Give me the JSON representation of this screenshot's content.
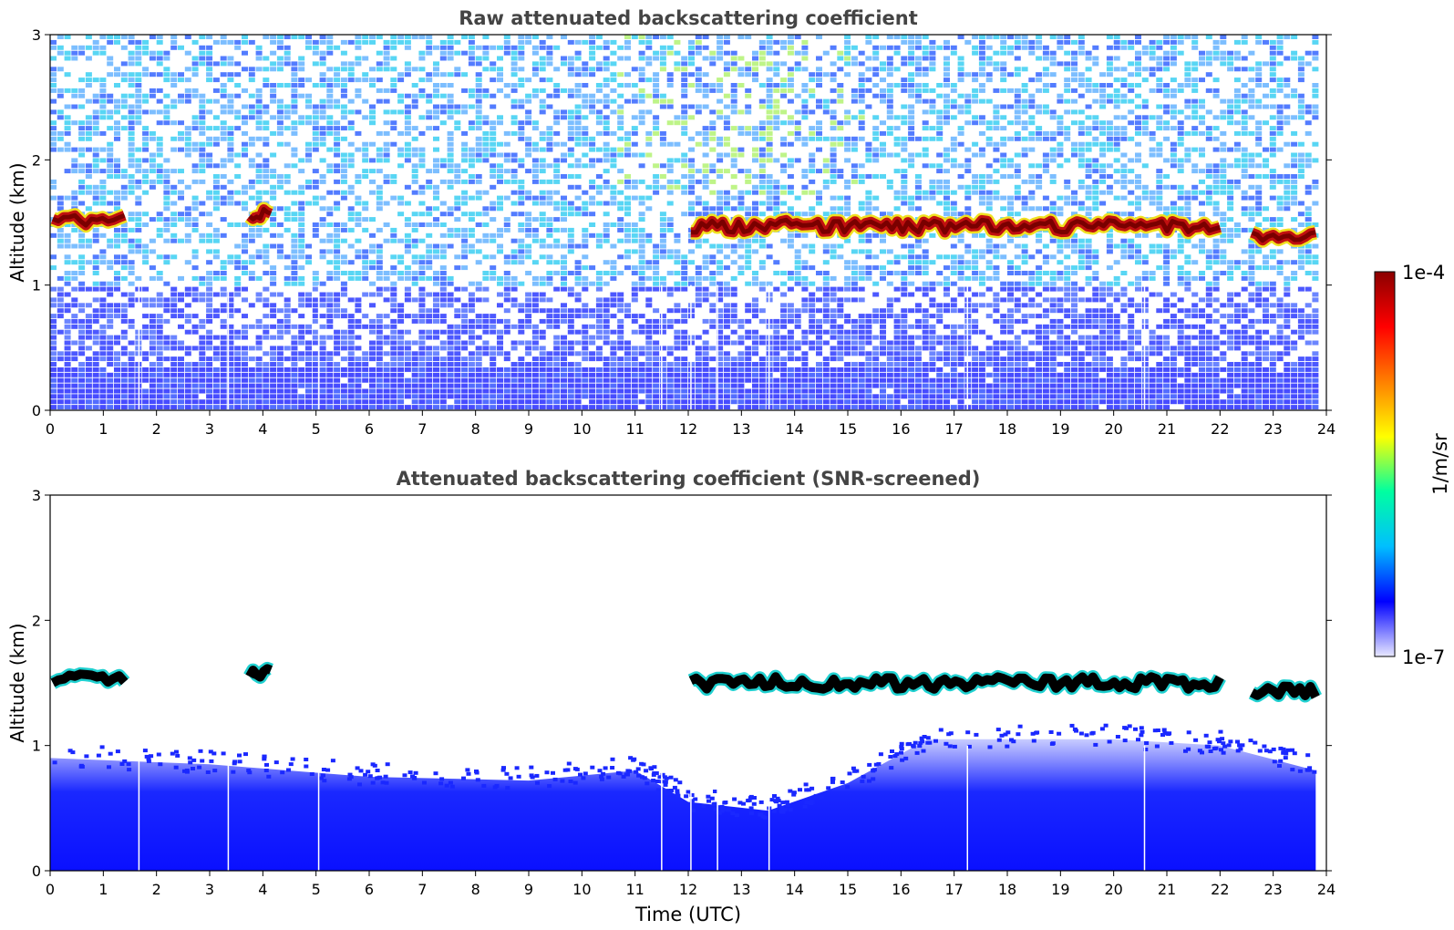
{
  "chart_data": [
    {
      "type": "heatmap",
      "title": "Raw attenuated backscattering coefficient",
      "ylabel": "Altitude (km)",
      "xlabel": "",
      "xlim": [
        0,
        24
      ],
      "ylim": [
        0,
        3
      ],
      "xticks": [
        "0",
        "1",
        "2",
        "3",
        "4",
        "5",
        "6",
        "7",
        "8",
        "9",
        "10",
        "11",
        "12",
        "13",
        "14",
        "15",
        "16",
        "17",
        "18",
        "19",
        "20",
        "21",
        "22",
        "23",
        "24"
      ],
      "yticks": [
        "0",
        "1",
        "2",
        "3"
      ],
      "cloud_layer": {
        "segments": [
          {
            "t0": 0.05,
            "t1": 1.4,
            "alt": 1.52
          },
          {
            "t0": 3.75,
            "t1": 4.15,
            "alt": 1.56
          },
          {
            "t0": 12.05,
            "t1": 22.0,
            "alt": 1.47
          },
          {
            "t0": 22.6,
            "t1": 23.8,
            "alt": 1.4
          }
        ]
      },
      "data_gaps_utc": [
        1.67,
        3.35,
        5.05,
        11.5,
        12.05,
        12.55,
        13.52,
        17.25,
        20.58
      ]
    },
    {
      "type": "heatmap",
      "title": "Attenuated backscattering coefficient (SNR-screened)",
      "ylabel": "Altitude (km)",
      "xlabel": "Time (UTC)",
      "xlim": [
        0,
        24
      ],
      "ylim": [
        0,
        3
      ],
      "xticks": [
        "0",
        "1",
        "2",
        "3",
        "4",
        "5",
        "6",
        "7",
        "8",
        "9",
        "10",
        "11",
        "12",
        "13",
        "14",
        "15",
        "16",
        "17",
        "18",
        "19",
        "20",
        "21",
        "22",
        "23",
        "24"
      ],
      "yticks": [
        "0",
        "1",
        "2",
        "3"
      ],
      "boundary_layer_top_km": [
        {
          "t": 0,
          "alt": 0.9
        },
        {
          "t": 3,
          "alt": 0.85
        },
        {
          "t": 6,
          "alt": 0.75
        },
        {
          "t": 9,
          "alt": 0.72
        },
        {
          "t": 11,
          "alt": 0.8
        },
        {
          "t": 12,
          "alt": 0.55
        },
        {
          "t": 13.5,
          "alt": 0.48
        },
        {
          "t": 15,
          "alt": 0.7
        },
        {
          "t": 16.5,
          "alt": 1.05
        },
        {
          "t": 20,
          "alt": 1.05
        },
        {
          "t": 22,
          "alt": 1.0
        },
        {
          "t": 24,
          "alt": 0.8
        }
      ],
      "data_gaps_utc": [
        1.67,
        3.35,
        5.05,
        11.5,
        12.05,
        12.55,
        13.52,
        17.25,
        20.58
      ]
    }
  ],
  "colorbar": {
    "label": "1/m/sr",
    "max_label": "1e-4",
    "min_label": "1e-7",
    "colormap": [
      "#e8e8ff",
      "#0000ff",
      "#00bfff",
      "#00ffa0",
      "#ffff00",
      "#ff8000",
      "#ff0000",
      "#8b0000"
    ]
  }
}
